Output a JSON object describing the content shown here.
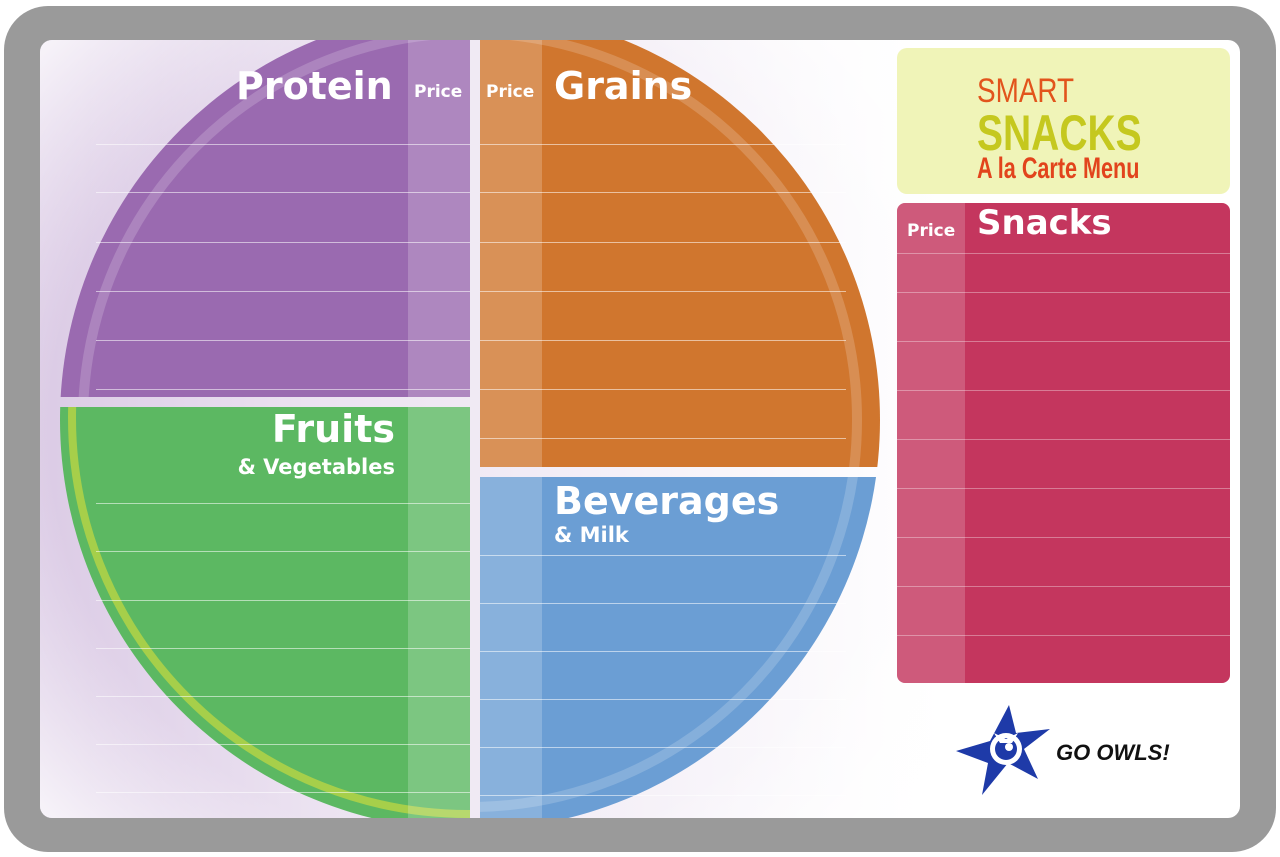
{
  "board": {
    "sections": {
      "protein": {
        "title": "Protein",
        "price_label": "Price",
        "color": "#9a6ab0"
      },
      "grains": {
        "title": "Grains",
        "price_label": "Price",
        "color": "#d0762e"
      },
      "fruits": {
        "title": "Fruits",
        "subtitle": "& Vegetables",
        "color": "#5cb862"
      },
      "beverages": {
        "title": "Beverages",
        "subtitle": "& Milk",
        "color": "#6b9ed4"
      },
      "snacks": {
        "title": "Snacks",
        "price_label": "Price",
        "color": "#c4365e"
      }
    },
    "promo": {
      "line1": "SMART",
      "line2": "SNACKS",
      "line3": "A la Carte Menu",
      "background": "#f0f4b8"
    },
    "mascot": {
      "icon": "owl-star-icon",
      "slogan": "GO OWLS!",
      "color": "#1e3aa8"
    },
    "frame_color": "#9a9a9a"
  }
}
